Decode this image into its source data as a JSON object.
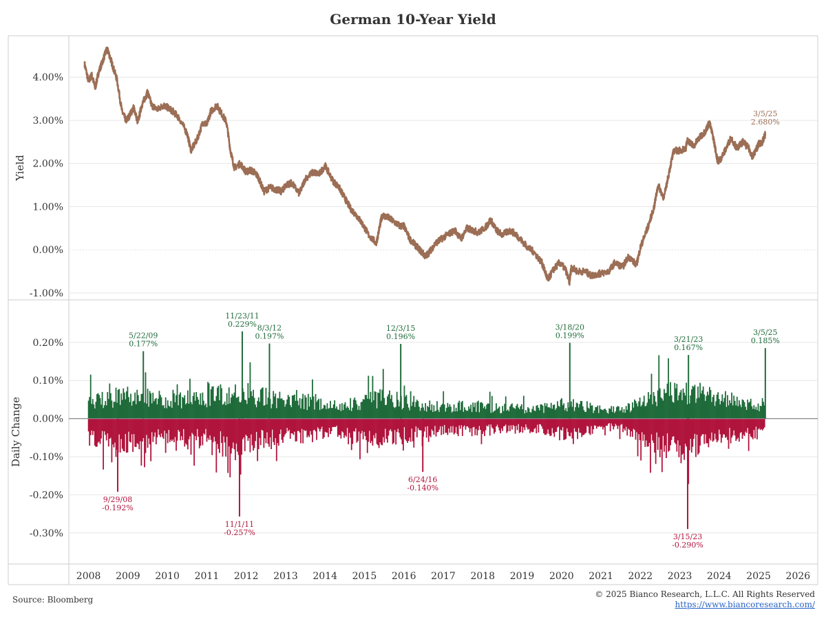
{
  "title": "German 10-Year Yield",
  "footer": {
    "source": "Source: Bloomberg",
    "copyright": "© 2025 Bianco Research, L.L.C. All Rights Reserved",
    "url": "https://www.biancoresearch.com/"
  },
  "colors": {
    "yield_line": "#9b6e55",
    "positive": "#1f6b3a",
    "negative": "#b0143c",
    "grid": "#e6e6e6",
    "frame": "#cccccc"
  },
  "chart_data": [
    {
      "type": "line",
      "ylabel": "Yield",
      "ylim": [
        -1.0,
        4.8
      ],
      "yticks": [
        4.0,
        3.0,
        2.0,
        1.0,
        0.0,
        -1.0
      ],
      "ytick_labels": [
        "4.00%",
        "3.00%",
        "2.00%",
        "1.00%",
        "0.00%",
        "-1.00%"
      ],
      "series": [
        {
          "x": [
            2007.9,
            2008.0,
            2008.08,
            2008.17,
            2008.25,
            2008.35,
            2008.45,
            2008.5,
            2008.6,
            2008.72,
            2008.85,
            2008.95,
            2009.0,
            2009.15,
            2009.25,
            2009.35,
            2009.45,
            2009.5,
            2009.6,
            2009.75,
            2009.9,
            2010.0,
            2010.15,
            2010.3,
            2010.5,
            2010.6,
            2010.75,
            2010.9,
            2011.0,
            2011.1,
            2011.25,
            2011.35,
            2011.5,
            2011.6,
            2011.7,
            2011.85,
            2012.0,
            2012.1,
            2012.2,
            2012.3,
            2012.45,
            2012.6,
            2012.75,
            2012.9,
            2013.0,
            2013.15,
            2013.35,
            2013.5,
            2013.7,
            2013.85,
            2014.0,
            2014.2,
            2014.35,
            2014.5,
            2014.65,
            2014.8,
            2014.95,
            2015.1,
            2015.3,
            2015.4,
            2015.45,
            2015.6,
            2015.75,
            2015.9,
            2016.0,
            2016.15,
            2016.3,
            2016.45,
            2016.55,
            2016.65,
            2016.8,
            2016.95,
            2017.1,
            2017.3,
            2017.45,
            2017.6,
            2017.75,
            2017.9,
            2018.1,
            2018.2,
            2018.35,
            2018.5,
            2018.7,
            2018.85,
            2019.0,
            2019.15,
            2019.3,
            2019.5,
            2019.6,
            2019.65,
            2019.8,
            2019.95,
            2020.1,
            2020.2,
            2020.25,
            2020.4,
            2020.6,
            2020.75,
            2020.95,
            2021.0,
            2021.2,
            2021.35,
            2021.55,
            2021.7,
            2021.9,
            2022.0,
            2022.1,
            2022.2,
            2022.35,
            2022.45,
            2022.6,
            2022.75,
            2022.85,
            2023.0,
            2023.15,
            2023.2,
            2023.35,
            2023.5,
            2023.65,
            2023.75,
            2023.85,
            2023.95,
            2024.0,
            2024.15,
            2024.3,
            2024.45,
            2024.6,
            2024.75,
            2024.85,
            2024.95,
            2025.0,
            2025.1,
            2025.17
          ],
          "y": [
            4.3,
            3.9,
            4.05,
            3.75,
            4.1,
            4.35,
            4.62,
            4.6,
            4.3,
            3.95,
            3.2,
            3.0,
            3.05,
            3.3,
            2.95,
            3.35,
            3.55,
            3.65,
            3.35,
            3.25,
            3.35,
            3.3,
            3.2,
            3.05,
            2.7,
            2.3,
            2.55,
            2.95,
            2.9,
            3.2,
            3.35,
            3.2,
            2.95,
            2.3,
            1.9,
            2.0,
            1.8,
            1.85,
            1.8,
            1.7,
            1.35,
            1.45,
            1.4,
            1.35,
            1.5,
            1.55,
            1.3,
            1.65,
            1.8,
            1.75,
            1.95,
            1.6,
            1.45,
            1.2,
            0.95,
            0.8,
            0.6,
            0.35,
            0.15,
            0.6,
            0.8,
            0.75,
            0.65,
            0.55,
            0.55,
            0.25,
            0.1,
            -0.05,
            -0.15,
            -0.05,
            0.15,
            0.25,
            0.35,
            0.45,
            0.25,
            0.5,
            0.45,
            0.4,
            0.55,
            0.7,
            0.45,
            0.35,
            0.45,
            0.35,
            0.2,
            0.05,
            -0.05,
            -0.3,
            -0.55,
            -0.7,
            -0.45,
            -0.3,
            -0.45,
            -0.75,
            -0.4,
            -0.5,
            -0.5,
            -0.6,
            -0.55,
            -0.55,
            -0.5,
            -0.3,
            -0.4,
            -0.15,
            -0.35,
            0.05,
            0.3,
            0.55,
            1.0,
            1.5,
            1.2,
            1.9,
            2.3,
            2.3,
            2.35,
            2.55,
            2.4,
            2.6,
            2.75,
            2.95,
            2.6,
            2.1,
            2.05,
            2.3,
            2.6,
            2.35,
            2.5,
            2.35,
            2.15,
            2.35,
            2.45,
            2.5,
            2.68
          ]
        }
      ],
      "annotations": [
        {
          "date": "3/5/25",
          "value": "2.680%",
          "x": 2025.17,
          "y": 2.68
        }
      ]
    },
    {
      "type": "bar",
      "ylabel": "Daily Change",
      "ylim": [
        -0.36,
        0.29
      ],
      "yticks": [
        0.2,
        0.1,
        0.0,
        -0.1,
        -0.2,
        -0.3
      ],
      "ytick_labels": [
        "0.20%",
        "0.10%",
        "0.00%",
        "-0.10%",
        "-0.20%",
        "-0.30%"
      ],
      "envelope": {
        "x": [
          2008.0,
          2008.5,
          2009.0,
          2009.5,
          2010.0,
          2010.5,
          2011.0,
          2011.5,
          2012.0,
          2012.5,
          2013.0,
          2013.5,
          2014.0,
          2014.5,
          2015.0,
          2015.5,
          2016.0,
          2016.5,
          2017.0,
          2017.5,
          2018.0,
          2018.5,
          2019.0,
          2019.5,
          2020.0,
          2020.5,
          2021.0,
          2021.5,
          2022.0,
          2022.5,
          2023.0,
          2023.5,
          2024.0,
          2024.5,
          2025.0
        ],
        "pos": [
          0.05,
          0.06,
          0.07,
          0.06,
          0.05,
          0.06,
          0.06,
          0.07,
          0.07,
          0.06,
          0.05,
          0.05,
          0.04,
          0.04,
          0.05,
          0.06,
          0.05,
          0.04,
          0.035,
          0.035,
          0.035,
          0.03,
          0.03,
          0.03,
          0.04,
          0.04,
          0.025,
          0.025,
          0.045,
          0.075,
          0.08,
          0.07,
          0.055,
          0.05,
          0.04
        ],
        "neg": [
          0.055,
          0.065,
          0.07,
          0.06,
          0.05,
          0.06,
          0.06,
          0.075,
          0.07,
          0.06,
          0.05,
          0.05,
          0.04,
          0.04,
          0.05,
          0.06,
          0.05,
          0.04,
          0.035,
          0.035,
          0.035,
          0.03,
          0.03,
          0.03,
          0.045,
          0.04,
          0.025,
          0.025,
          0.05,
          0.08,
          0.085,
          0.07,
          0.055,
          0.05,
          0.04
        ]
      },
      "annotations": [
        {
          "date": "5/22/09",
          "value": "0.177%",
          "x": 2009.39,
          "y": 0.177,
          "side": "pos"
        },
        {
          "date": "11/23/11",
          "value": "0.229%",
          "x": 2011.9,
          "y": 0.229,
          "side": "pos"
        },
        {
          "date": "8/3/12",
          "value": "0.197%",
          "x": 2012.59,
          "y": 0.197,
          "side": "pos"
        },
        {
          "date": "12/3/15",
          "value": "0.196%",
          "x": 2015.92,
          "y": 0.196,
          "side": "pos"
        },
        {
          "date": "3/18/20",
          "value": "0.199%",
          "x": 2020.21,
          "y": 0.199,
          "side": "pos"
        },
        {
          "date": "3/21/23",
          "value": "0.167%",
          "x": 2023.22,
          "y": 0.167,
          "side": "pos"
        },
        {
          "date": "3/5/25",
          "value": "0.185%",
          "x": 2025.17,
          "y": 0.185,
          "side": "pos"
        },
        {
          "date": "9/29/08",
          "value": "-0.192%",
          "x": 2008.74,
          "y": -0.192,
          "side": "neg"
        },
        {
          "date": "11/1/11",
          "value": "-0.257%",
          "x": 2011.83,
          "y": -0.257,
          "side": "neg"
        },
        {
          "date": "6/24/16",
          "value": "-0.140%",
          "x": 2016.48,
          "y": -0.14,
          "side": "neg"
        },
        {
          "date": "3/15/23",
          "value": "-0.290%",
          "x": 2023.2,
          "y": -0.29,
          "side": "neg"
        }
      ]
    }
  ],
  "x_axis": {
    "ticks": [
      2008,
      2009,
      2010,
      2011,
      2012,
      2013,
      2014,
      2015,
      2016,
      2017,
      2018,
      2019,
      2020,
      2021,
      2022,
      2023,
      2024,
      2025,
      2026
    ],
    "labels": [
      "2008",
      "2009",
      "2010",
      "2011",
      "2012",
      "2013",
      "2014",
      "2015",
      "2016",
      "2017",
      "2018",
      "2019",
      "2020",
      "2021",
      "2022",
      "2023",
      "2024",
      "2025",
      "2026"
    ],
    "range": [
      2007.5,
      2026.5
    ]
  }
}
